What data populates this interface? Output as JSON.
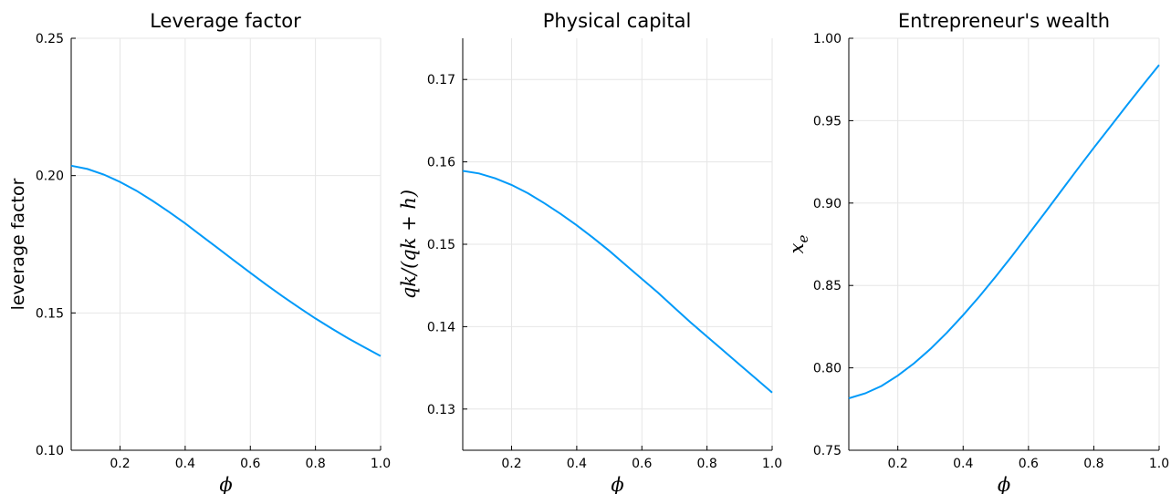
{
  "chart_data": [
    {
      "type": "line",
      "title": "Leverage factor",
      "xlabel": "ϕ",
      "ylabel": "leverage factor",
      "xlim": [
        0.05,
        1.0
      ],
      "ylim": [
        0.1,
        0.25
      ],
      "xticks": [
        0.2,
        0.4,
        0.6,
        0.8,
        1.0
      ],
      "xtick_labels": [
        "0.2",
        "0.4",
        "0.6",
        "0.8",
        "1.0"
      ],
      "yticks": [
        0.1,
        0.15,
        0.2,
        0.25
      ],
      "ytick_labels": [
        "0.10",
        "0.15",
        "0.20",
        "0.25"
      ],
      "grid": true,
      "color": "#009af9",
      "series": [
        {
          "x": [
            0.05,
            0.1,
            0.15,
            0.2,
            0.25,
            0.3,
            0.35,
            0.4,
            0.45,
            0.5,
            0.55,
            0.6,
            0.65,
            0.7,
            0.75,
            0.8,
            0.85,
            0.9,
            0.95,
            1.0
          ],
          "y": [
            0.2036,
            0.2024,
            0.2004,
            0.1977,
            0.1945,
            0.1908,
            0.1868,
            0.1826,
            0.1781,
            0.1736,
            0.1691,
            0.1646,
            0.1602,
            0.156,
            0.1519,
            0.148,
            0.1443,
            0.1408,
            0.1375,
            0.1343
          ]
        }
      ]
    },
    {
      "type": "line",
      "title": "Physical capital",
      "xlabel": "ϕ",
      "ylabel": "qk/(qk + h)",
      "xlim": [
        0.05,
        1.0
      ],
      "ylim": [
        0.125,
        0.175
      ],
      "xticks": [
        0.2,
        0.4,
        0.6,
        0.8,
        1.0
      ],
      "xtick_labels": [
        "0.2",
        "0.4",
        "0.6",
        "0.8",
        "1.0"
      ],
      "yticks": [
        0.13,
        0.14,
        0.15,
        0.16,
        0.17
      ],
      "ytick_labels": [
        "0.13",
        "0.14",
        "0.15",
        "0.16",
        "0.17"
      ],
      "grid": true,
      "color": "#009af9",
      "series": [
        {
          "x": [
            0.05,
            0.1,
            0.15,
            0.2,
            0.25,
            0.3,
            0.35,
            0.4,
            0.45,
            0.5,
            0.55,
            0.6,
            0.65,
            0.7,
            0.75,
            0.8,
            0.85,
            0.9,
            0.95,
            1.0
          ],
          "y": [
            0.1589,
            0.1586,
            0.158,
            0.1572,
            0.1562,
            0.155,
            0.1537,
            0.1523,
            0.1508,
            0.1492,
            0.1475,
            0.1458,
            0.1441,
            0.1423,
            0.1405,
            0.1388,
            0.1371,
            0.1354,
            0.1337,
            0.132
          ]
        }
      ]
    },
    {
      "type": "line",
      "title": "Entrepreneur's wealth",
      "xlabel": "ϕ",
      "ylabel": "x_e",
      "xlim": [
        0.05,
        1.0
      ],
      "ylim": [
        0.75,
        1.0
      ],
      "xticks": [
        0.2,
        0.4,
        0.6,
        0.8,
        1.0
      ],
      "xtick_labels": [
        "0.2",
        "0.4",
        "0.6",
        "0.8",
        "1.0"
      ],
      "yticks": [
        0.75,
        0.8,
        0.85,
        0.9,
        0.95,
        1.0
      ],
      "ytick_labels": [
        "0.75",
        "0.80",
        "0.85",
        "0.90",
        "0.95",
        "1.00"
      ],
      "grid": true,
      "color": "#009af9",
      "series": [
        {
          "x": [
            0.05,
            0.1,
            0.15,
            0.2,
            0.25,
            0.3,
            0.35,
            0.4,
            0.45,
            0.5,
            0.55,
            0.6,
            0.65,
            0.7,
            0.75,
            0.8,
            0.85,
            0.9,
            0.95,
            1.0
          ],
          "y": [
            0.7815,
            0.7845,
            0.789,
            0.7953,
            0.8028,
            0.8115,
            0.8213,
            0.832,
            0.8434,
            0.8555,
            0.868,
            0.881,
            0.894,
            0.9073,
            0.9205,
            0.9335,
            0.9462,
            0.959,
            0.9715,
            0.9838
          ]
        }
      ]
    }
  ]
}
